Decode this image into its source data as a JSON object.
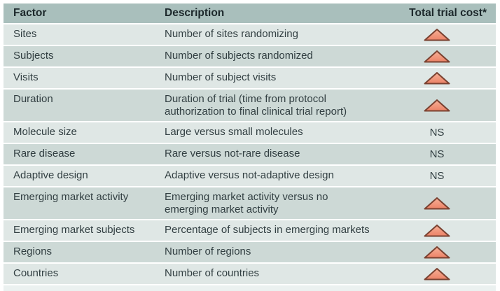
{
  "table": {
    "columns": [
      "Factor",
      "Description",
      "Total trial cost*"
    ],
    "ns_label": "NS",
    "increase_icon": "up-triangle-icon",
    "rows": [
      {
        "factor": "Sites",
        "description": "Number of sites randomizing",
        "cost": "increase"
      },
      {
        "factor": "Subjects",
        "description": "Number of subjects randomized",
        "cost": "increase"
      },
      {
        "factor": "Visits",
        "description": "Number of subject visits",
        "cost": "increase"
      },
      {
        "factor": "Duration",
        "description": "Duration of trial (time from protocol authorization to final clinical trial report)",
        "cost": "increase"
      },
      {
        "factor": "Molecule size",
        "description": "Large versus small molecules",
        "cost": "NS"
      },
      {
        "factor": "Rare disease",
        "description": "Rare versus not-rare disease",
        "cost": "NS"
      },
      {
        "factor": "Adaptive design",
        "description": "Adaptive versus not-adaptive design",
        "cost": "NS"
      },
      {
        "factor": "Emerging market activity",
        "description": "Emerging market activity versus no emerging market activity",
        "cost": "increase"
      },
      {
        "factor": "Emerging market subjects",
        "description": "Percentage of subjects in emerging markets",
        "cost": "increase"
      },
      {
        "factor": "Regions",
        "description": "Number of regions",
        "cost": "increase"
      },
      {
        "factor": "Countries",
        "description": "Number of countries",
        "cost": "increase"
      }
    ],
    "colors": {
      "header_bg": "#a9bfbc",
      "row_light": "#dfe7e5",
      "row_dark": "#cdd9d6",
      "triangle_fill_top": "#f6b097",
      "triangle_fill_bottom": "#ec8266",
      "triangle_border": "#7a4231",
      "text": "#323f42"
    }
  }
}
